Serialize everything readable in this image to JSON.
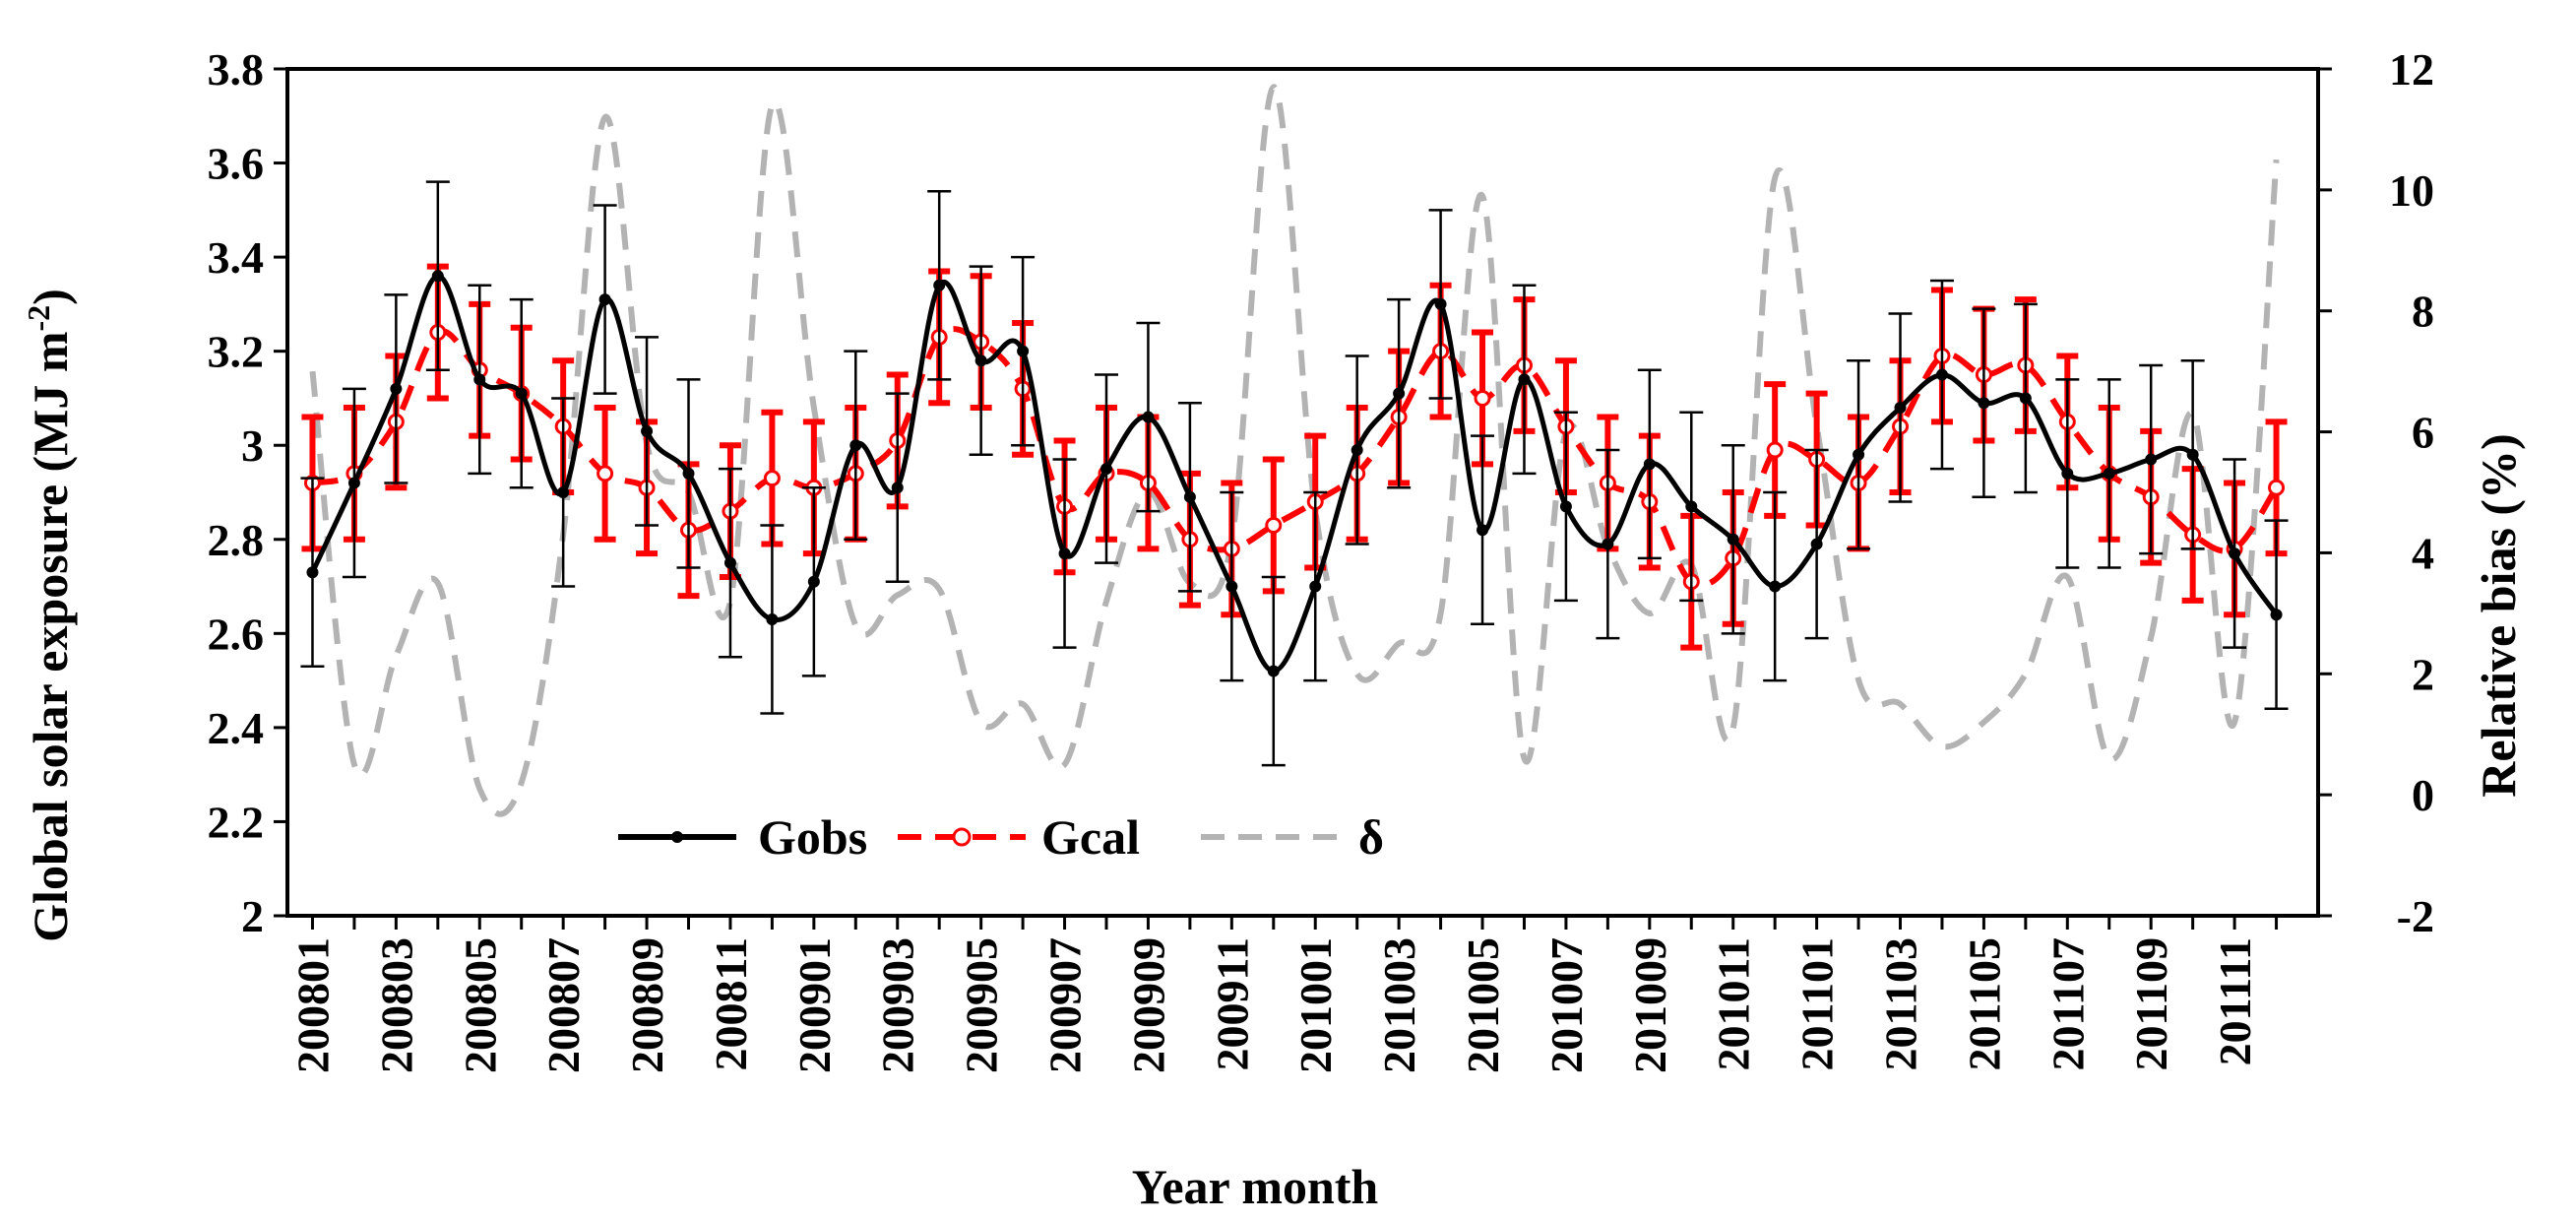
{
  "chart_data": {
    "type": "line",
    "title": "",
    "xlabel": "Year month",
    "ylabel_left": "Global solar exposure (MJ m-2)",
    "ylabel_left_main": "Global solar exposure (MJ m",
    "ylabel_left_sup": "-2",
    "ylabel_left_close": ")",
    "ylabel_right": "Relative bias  (%)",
    "ylim_left": [
      2,
      3.8
    ],
    "ylim_right": [
      -2,
      12
    ],
    "yticks_left": [
      "2",
      "2.2",
      "2.4",
      "2.6",
      "2.8",
      "3",
      "3.2",
      "3.4",
      "3.6",
      "3.8"
    ],
    "yticks_right": [
      "-2",
      "0",
      "2",
      "4",
      "6",
      "8",
      "10",
      "12"
    ],
    "categories": [
      "200801",
      "200802",
      "200803",
      "200804",
      "200805",
      "200806",
      "200807",
      "200808",
      "200809",
      "200810",
      "200811",
      "200812",
      "200901",
      "200902",
      "200903",
      "200904",
      "200905",
      "200906",
      "200907",
      "200908",
      "200909",
      "200910",
      "200911",
      "200912",
      "201001",
      "201002",
      "201003",
      "201004",
      "201005",
      "201006",
      "201007",
      "201008",
      "201009",
      "201010",
      "201011",
      "201012",
      "201101",
      "201102",
      "201103",
      "201104",
      "201105",
      "201106",
      "201107",
      "201108",
      "201109",
      "201110",
      "201111",
      "201112"
    ],
    "xtick_labels": [
      "200801",
      "200803",
      "200805",
      "200807",
      "200809",
      "200811",
      "200901",
      "200903",
      "200905",
      "200907",
      "200909",
      "200911",
      "201001",
      "201003",
      "201005",
      "201007",
      "201009",
      "201011",
      "201101",
      "201103",
      "201105",
      "201107",
      "201109",
      "201111"
    ],
    "series": [
      {
        "name": "Gobs",
        "axis": "left",
        "color": "#000000",
        "style": "solid",
        "values": [
          2.73,
          2.92,
          3.12,
          3.36,
          3.14,
          3.11,
          2.9,
          3.31,
          3.03,
          2.94,
          2.75,
          2.63,
          2.71,
          3.0,
          2.91,
          3.34,
          3.18,
          3.2,
          2.77,
          2.95,
          3.06,
          2.89,
          2.7,
          2.52,
          2.7,
          2.99,
          3.11,
          3.3,
          2.82,
          3.14,
          2.87,
          2.79,
          2.96,
          2.87,
          2.8,
          2.7,
          2.79,
          2.98,
          3.08,
          3.15,
          3.09,
          3.1,
          2.94,
          2.94,
          2.97,
          2.98,
          2.77,
          2.64
        ],
        "error": 0.2
      },
      {
        "name": "Gcal",
        "axis": "left",
        "color": "#ff0000",
        "style": "dashed",
        "values": [
          2.92,
          2.94,
          3.05,
          3.24,
          3.16,
          3.11,
          3.04,
          2.94,
          2.91,
          2.82,
          2.86,
          2.93,
          2.91,
          2.94,
          3.01,
          3.23,
          3.22,
          3.12,
          2.87,
          2.94,
          2.92,
          2.8,
          2.78,
          2.83,
          2.88,
          2.94,
          3.06,
          3.2,
          3.1,
          3.17,
          3.04,
          2.92,
          2.88,
          2.71,
          2.76,
          2.99,
          2.97,
          2.92,
          3.04,
          3.19,
          3.15,
          3.17,
          3.05,
          2.94,
          2.89,
          2.81,
          2.78,
          2.91
        ],
        "error": 0.14
      },
      {
        "name": "δ",
        "axis": "right",
        "color": "#b3b3b3",
        "style": "dashed",
        "values": [
          7.0,
          0.5,
          2.3,
          3.5,
          0.1,
          0.2,
          4.3,
          11.2,
          5.8,
          5.0,
          3.2,
          11.4,
          6.4,
          2.8,
          3.3,
          3.4,
          1.2,
          1.5,
          0.5,
          3.2,
          5.0,
          3.5,
          4.2,
          11.7,
          4.7,
          2.0,
          2.5,
          3.0,
          9.9,
          0.6,
          6.0,
          4.1,
          3.0,
          3.8,
          1.1,
          10.2,
          6.1,
          1.9,
          1.5,
          0.8,
          1.2,
          2.0,
          3.6,
          0.6,
          2.6,
          6.3,
          1.2,
          10.5
        ]
      }
    ],
    "legend": [
      "Gobs",
      "Gcal",
      "δ"
    ],
    "legend_position": "bottom-left inside plot",
    "grid": false
  }
}
